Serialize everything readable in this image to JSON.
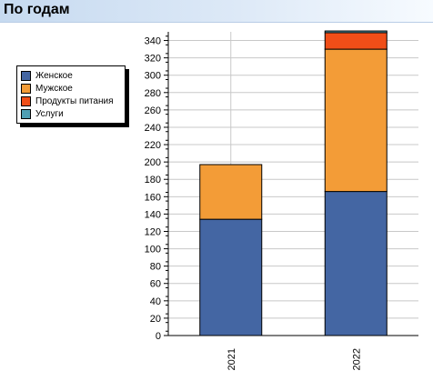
{
  "header": {
    "title": "По годам"
  },
  "chart_data": {
    "type": "bar",
    "stacked": true,
    "categories": [
      "2021",
      "2022"
    ],
    "series": [
      {
        "name": "Женское",
        "color": "#4466a3",
        "values": [
          134,
          166
        ]
      },
      {
        "name": "Мужское",
        "color": "#f39c37",
        "values": [
          63,
          164
        ]
      },
      {
        "name": "Продукты питания",
        "color": "#f04e18",
        "values": [
          0,
          19
        ]
      },
      {
        "name": "Услуги",
        "color": "#4f9fb3",
        "values": [
          0,
          2
        ]
      }
    ],
    "yticks": [
      "0",
      "20",
      "40",
      "60",
      "80",
      "100",
      "120",
      "140",
      "160",
      "180",
      "200",
      "220",
      "240",
      "260",
      "280",
      "300",
      "320",
      "340"
    ],
    "ylim": [
      0,
      350
    ],
    "grid": true,
    "legend_position": "left"
  }
}
